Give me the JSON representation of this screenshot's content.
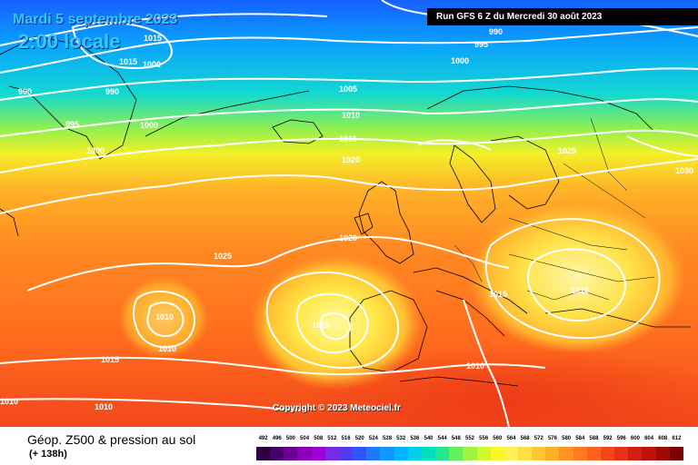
{
  "header": {
    "date": "Mardi 5 septembre 2023",
    "local_time": "2:00 locale",
    "run_info": "Run GFS 6 Z du Mercredi 30 août 2023"
  },
  "footer": {
    "product": "Géop. Z500 & pression au sol",
    "lead_time": "(+ 138h)",
    "copyright": "Copyright © 2023 Meteociel.fr"
  },
  "isobar_labels": [
    "1015",
    "1015",
    "1000",
    "990",
    "995",
    "990",
    "990",
    "1000",
    "1005",
    "1010",
    "1015",
    "1020",
    "995",
    "1000",
    "1000",
    "1025",
    "1030",
    "1020",
    "1025",
    "1010",
    "1010",
    "1015",
    "1005",
    "1015",
    "1010",
    "1010",
    "1010",
    "1010"
  ],
  "scale": {
    "labels": [
      "492",
      "496",
      "500",
      "504",
      "508",
      "512",
      "516",
      "520",
      "524",
      "528",
      "532",
      "536",
      "540",
      "544",
      "548",
      "552",
      "556",
      "560",
      "564",
      "568",
      "572",
      "576",
      "580",
      "584",
      "588",
      "592",
      "596",
      "600",
      "604",
      "608",
      "612"
    ],
    "colors": [
      "#2e0040",
      "#4a006a",
      "#6a0090",
      "#8a00b8",
      "#a000d8",
      "#7a2ae0",
      "#4f3cf0",
      "#2f55ff",
      "#1f78ff",
      "#0f98ff",
      "#00b4ff",
      "#00cfe8",
      "#00e0c0",
      "#20e890",
      "#60f060",
      "#a0f440",
      "#d4f830",
      "#f8f828",
      "#fff05a",
      "#ffe040",
      "#ffc830",
      "#ffae28",
      "#ff9424",
      "#ff7a20",
      "#ff601c",
      "#f44618",
      "#e83014",
      "#d41e10",
      "#c0120c",
      "#9e0a08",
      "#7a0404"
    ]
  }
}
